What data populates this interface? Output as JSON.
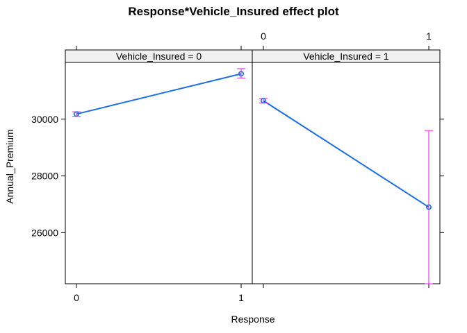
{
  "chart_data": {
    "type": "line",
    "title": "Response*Vehicle_Insured effect plot",
    "xlabel": "Response",
    "ylabel": "Annual_Premium",
    "x_ticks": [
      "0",
      "1"
    ],
    "y_ticks": [
      26000,
      28000,
      30000
    ],
    "ylim": [
      24200,
      32000
    ],
    "grid": false,
    "colors": {
      "line": "#1a6fe8",
      "error_bar": "#e83ee8",
      "strip": "#f0f0f0",
      "frame": "#000000"
    },
    "panels": [
      {
        "strip_label": "Vehicle_Insured = 0",
        "points": [
          {
            "x": 0,
            "y": 30180,
            "lower": 30100,
            "upper": 30260
          },
          {
            "x": 1,
            "y": 31600,
            "lower": 31450,
            "upper": 31780
          }
        ]
      },
      {
        "strip_label": "Vehicle_Insured = 1",
        "points": [
          {
            "x": 0,
            "y": 30650,
            "lower": 30570,
            "upper": 30730
          },
          {
            "x": 1,
            "y": 26900,
            "lower": 24200,
            "upper": 29600
          }
        ]
      }
    ]
  }
}
